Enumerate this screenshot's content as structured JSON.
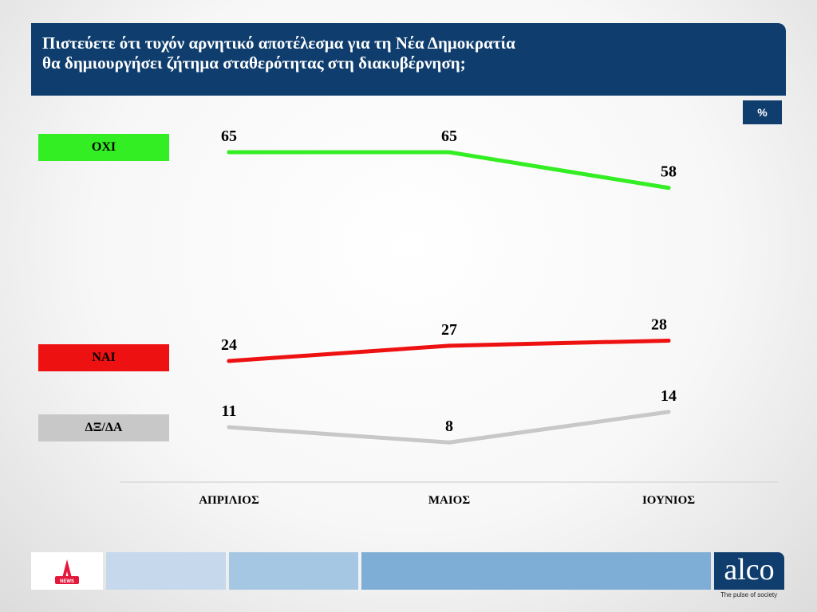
{
  "header": {
    "title_line1": "Πιστεύετε ότι τυχόν αρνητικό αποτέλεσμα για τη Νέα Δημοκρατία",
    "title_line2": "θα δημιουργήσει ζήτημα σταθερότητας στη διακυβέρνηση;"
  },
  "unit_badge": "%",
  "chart_data": {
    "type": "line",
    "title": "Πιστεύετε ότι τυχόν αρνητικό αποτέλεσμα για τη Νέα Δημοκρατία θα δημιουργήσει ζήτημα σταθερότητας στη διακυβέρνηση;",
    "categories": [
      "ΑΠΡΙΛΙΟΣ",
      "ΜΑΙΟΣ",
      "ΙΟΥΝΙΟΣ"
    ],
    "unit": "%",
    "series": [
      {
        "name": "ΟΧΙ",
        "values": [
          65,
          65,
          58
        ],
        "color": "#33ee22"
      },
      {
        "name": "ΝΑΙ",
        "values": [
          24,
          27,
          28
        ],
        "color": "#ee1111"
      },
      {
        "name": "ΔΞ/ΔΑ",
        "values": [
          11,
          8,
          14
        ],
        "color": "#c8c8c8"
      }
    ],
    "legend_position": "left",
    "grid": false
  },
  "footer": {
    "brand": "alco",
    "tagline": "The pulse of society",
    "news_logo_text": "NEWS",
    "colors": [
      "#c5d8ec",
      "#a6c7e3",
      "#7eaed6"
    ]
  }
}
